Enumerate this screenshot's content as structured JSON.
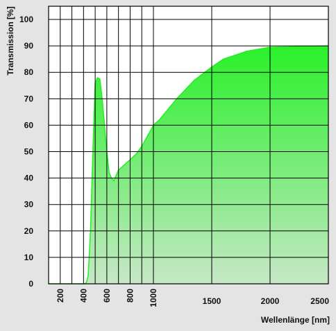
{
  "chart_data": {
    "type": "area",
    "title": "",
    "xlabel": "Wellenlänge [nm]",
    "ylabel": "Transmission [%]",
    "xscale": "piecewise-linear: 100–1000 nm expanded, 1000–2500 nm compressed",
    "xlim": [
      100,
      2500
    ],
    "ylim": [
      0,
      105
    ],
    "grid": true,
    "x_ticks_rotated": [
      200,
      400,
      600,
      800,
      1000
    ],
    "x_ticks_horizontal": [
      1500,
      2000,
      2500
    ],
    "x_minor_gridlines": [
      300,
      500,
      700,
      900
    ],
    "y_ticks": [
      0,
      10,
      20,
      30,
      40,
      50,
      60,
      70,
      80,
      90,
      100
    ],
    "fill_color_top": "#2af02a",
    "fill_color_bottom": "#c6e8c6",
    "line_color": "#22ee22",
    "series": [
      {
        "x": [
          100,
          300,
          410,
          425,
          440,
          460,
          480,
          500,
          520,
          540,
          560,
          580,
          600,
          620,
          640,
          660,
          680,
          700,
          750,
          800,
          850,
          900,
          950,
          1000,
          1050,
          1200,
          1350,
          1500,
          1600,
          1800,
          2000,
          2500
        ],
        "y": [
          0,
          0,
          0,
          0.5,
          3,
          20,
          50,
          76,
          78,
          77.5,
          70,
          60,
          50,
          42,
          40,
          39,
          41,
          43,
          45,
          47,
          49,
          52,
          56,
          60,
          62,
          70,
          77,
          82,
          85,
          88,
          89.5,
          90
        ]
      }
    ]
  }
}
